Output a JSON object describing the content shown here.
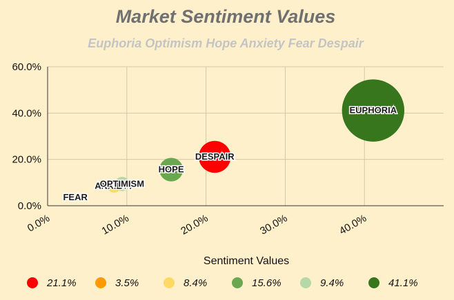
{
  "chart_data": {
    "type": "scatter",
    "title": "Market Sentiment Values",
    "subtitle": "Euphoria Optimism Hope Anxiety Fear Despair",
    "xlabel": "Sentiment Values",
    "ylabel": "",
    "xlim": [
      0,
      50
    ],
    "ylim": [
      0,
      60
    ],
    "x_ticks": [
      "0.0%",
      "10.0%",
      "20.0%",
      "30.0%",
      "40.0%"
    ],
    "y_ticks": [
      "0.0%",
      "20.0%",
      "40.0%",
      "60.0%"
    ],
    "grid": true,
    "legend_position": "bottom",
    "points": [
      {
        "label": "DESPAIR",
        "legend": "21.1%",
        "x": 21.1,
        "y": 21.1,
        "color": "#ff0000"
      },
      {
        "label": "FEAR",
        "legend": "3.5%",
        "x": 3.5,
        "y": 3.5,
        "color": "#ff9900"
      },
      {
        "label": "ANXIETY",
        "legend": "8.4%",
        "x": 8.4,
        "y": 8.4,
        "color": "#ffd966"
      },
      {
        "label": "HOPE",
        "legend": "15.6%",
        "x": 15.6,
        "y": 15.6,
        "color": "#6aa84f"
      },
      {
        "label": "OPTIMISM",
        "legend": "9.4%",
        "x": 9.4,
        "y": 9.4,
        "color": "#b6d7a8"
      },
      {
        "label": "EUPHORIA",
        "legend": "41.1%",
        "x": 41.1,
        "y": 41.1,
        "color": "#38761d"
      }
    ]
  }
}
